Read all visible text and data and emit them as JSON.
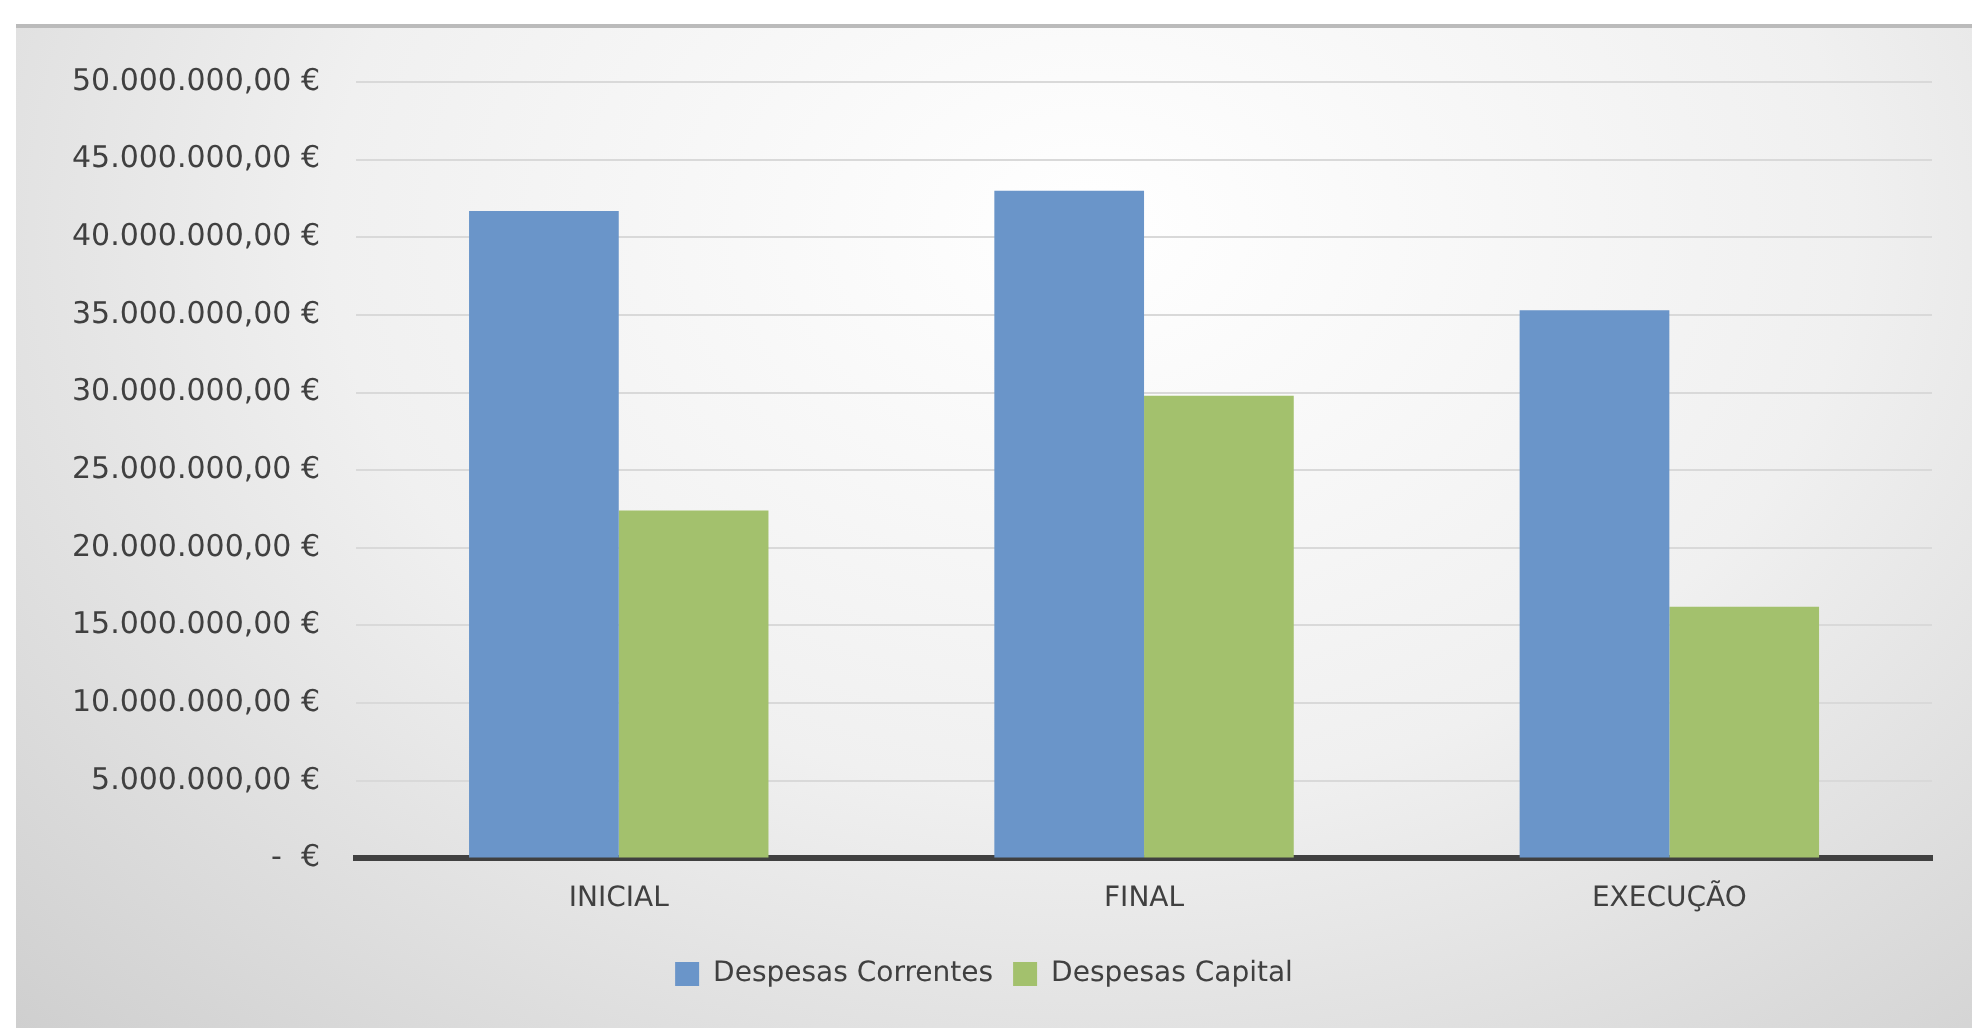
{
  "chart_data": {
    "type": "bar",
    "categories": [
      "INICIAL",
      "FINAL",
      "EXECUÇÃO"
    ],
    "series": [
      {
        "name": "Despesas Correntes",
        "color": "#6a95c9",
        "values": [
          41700000.0,
          43000000.0,
          35300000.0
        ]
      },
      {
        "name": "Despesas Capital",
        "color": "#a3c16d",
        "values": [
          22400000.0,
          29800000.0,
          16200000.0
        ]
      }
    ],
    "ylim": [
      0,
      50000000
    ],
    "yticks": [
      {
        "value": 0,
        "label": "-  €"
      },
      {
        "value": 5000000,
        "label": "5.000.000,00 €"
      },
      {
        "value": 10000000,
        "label": "10.000.000,00 €"
      },
      {
        "value": 15000000,
        "label": "15.000.000,00 €"
      },
      {
        "value": 20000000,
        "label": "20.000.000,00 €"
      },
      {
        "value": 25000000,
        "label": "25.000.000,00 €"
      },
      {
        "value": 30000000,
        "label": "30.000.000,00 €"
      },
      {
        "value": 35000000,
        "label": "35.000.000,00 €"
      },
      {
        "value": 40000000,
        "label": "40.000.000,00 €"
      },
      {
        "value": 45000000,
        "label": "45.000.000,00 €"
      },
      {
        "value": 50000000,
        "label": "50.000.000,00 €"
      }
    ],
    "grid": "y",
    "legend": "bottom"
  }
}
